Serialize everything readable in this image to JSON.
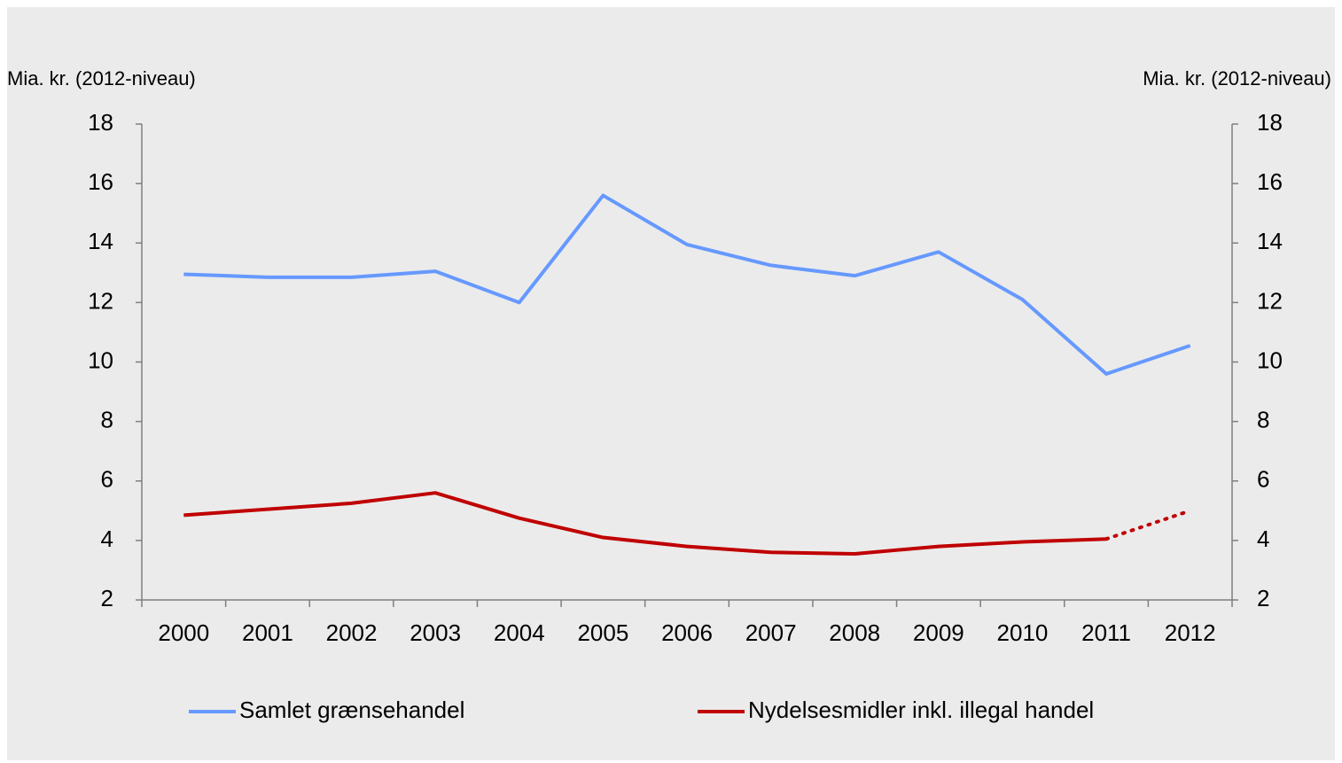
{
  "chart_data": {
    "type": "line",
    "y_label": "Mia. kr. (2012-niveau)",
    "y2_label": "Mia. kr. (2012-niveau)",
    "categories": [
      "2000",
      "2001",
      "2002",
      "2003",
      "2004",
      "2005",
      "2006",
      "2007",
      "2008",
      "2009",
      "2010",
      "2011",
      "2012"
    ],
    "series": [
      {
        "name": "Samlet grænsehandel",
        "color": "#6699ff",
        "values": [
          12.95,
          12.85,
          12.85,
          13.05,
          12.0,
          15.6,
          13.95,
          13.25,
          12.9,
          13.7,
          12.1,
          9.6,
          10.55
        ]
      },
      {
        "name": "Nydelsesmidler inkl. illegal handel",
        "color": "#c00000",
        "dotted_from_index": 11,
        "values": [
          4.85,
          5.05,
          5.25,
          5.6,
          4.75,
          4.1,
          3.8,
          3.6,
          3.55,
          3.8,
          3.95,
          4.05,
          5.0
        ]
      }
    ],
    "ylim": [
      2,
      18
    ],
    "yticks": [
      2,
      4,
      6,
      8,
      10,
      12,
      14,
      16,
      18
    ],
    "y2lim": [
      2,
      18
    ],
    "y2ticks": [
      2,
      4,
      6,
      8,
      10,
      12,
      14,
      16,
      18
    ],
    "grid": false,
    "legend": "bottom"
  }
}
